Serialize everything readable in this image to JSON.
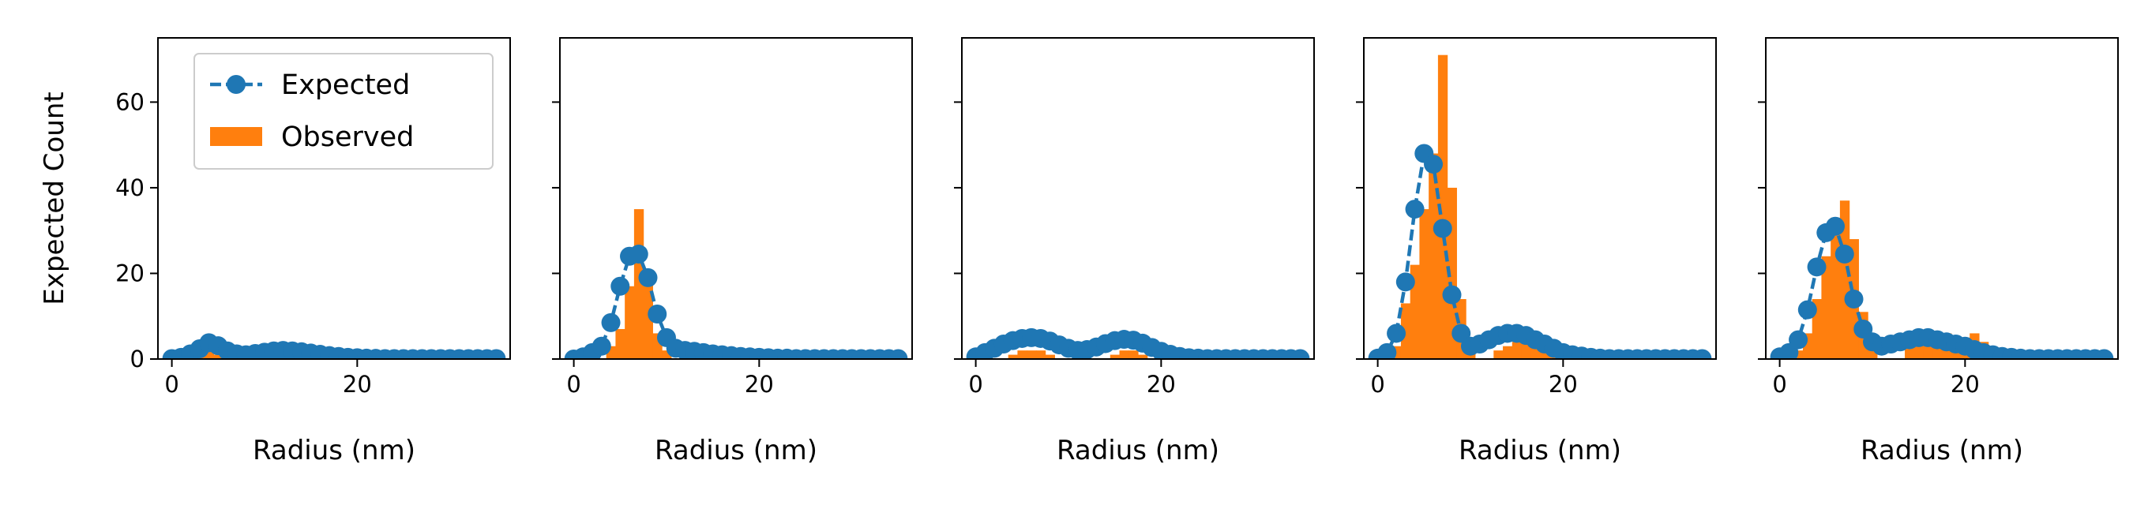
{
  "chart_data": [
    {
      "type": "bar+line",
      "xlabel": "Radius (nm)",
      "ylabel": "Expected Count",
      "xlim": [
        -1.5,
        36.5
      ],
      "ylim": [
        0,
        75
      ],
      "xticks": [
        0,
        20
      ],
      "yticks": [
        0,
        20,
        40,
        60
      ],
      "legend": {
        "placement": "top-left",
        "entries": [
          "Expected",
          "Observed"
        ]
      },
      "series": [
        {
          "name": "Expected",
          "kind": "line-markers",
          "style": "dashed",
          "color": "#1f77b4",
          "x": [
            0,
            1,
            2,
            3,
            4,
            5,
            6,
            7,
            8,
            9,
            10,
            11,
            12,
            13,
            14,
            15,
            16,
            17,
            18,
            19,
            20,
            21,
            22,
            23,
            24,
            25,
            26,
            27,
            28,
            29,
            30,
            31,
            32,
            33,
            34,
            35
          ],
          "y": [
            0.1,
            0.4,
            1.2,
            2.4,
            3.8,
            3.1,
            1.9,
            1.2,
            1.0,
            1.3,
            1.6,
            1.9,
            2.0,
            1.9,
            1.7,
            1.4,
            1.1,
            0.8,
            0.6,
            0.4,
            0.3,
            0.2,
            0.15,
            0.1,
            0.1,
            0.1,
            0.1,
            0.1,
            0.1,
            0.1,
            0.1,
            0.1,
            0.1,
            0.1,
            0.1,
            0.1
          ]
        },
        {
          "name": "Observed",
          "kind": "histogram",
          "color": "#ff7f0e",
          "x": [
            3,
            4,
            5
          ],
          "y": [
            1,
            3,
            1
          ]
        }
      ]
    },
    {
      "type": "bar+line",
      "xlabel": "Radius (nm)",
      "xlim": [
        -1.5,
        36.5
      ],
      "ylim": [
        0,
        75
      ],
      "xticks": [
        0,
        20
      ],
      "series": [
        {
          "name": "Expected",
          "kind": "line-markers",
          "style": "dashed",
          "color": "#1f77b4",
          "x": [
            0,
            1,
            2,
            3,
            4,
            5,
            6,
            7,
            8,
            9,
            10,
            11,
            12,
            13,
            14,
            15,
            16,
            17,
            18,
            19,
            20,
            21,
            22,
            23,
            24,
            25,
            26,
            27,
            28,
            29,
            30,
            31,
            32,
            33,
            34,
            35
          ],
          "y": [
            0,
            0.5,
            1.5,
            3,
            8.5,
            17,
            24,
            24.5,
            19,
            10.5,
            5,
            2.5,
            2,
            1.8,
            1.5,
            1.2,
            1,
            0.8,
            0.6,
            0.5,
            0.4,
            0.3,
            0.2,
            0.2,
            0.1,
            0.1,
            0.1,
            0.1,
            0.1,
            0.1,
            0.1,
            0.1,
            0.1,
            0.1,
            0.1,
            0.1
          ]
        },
        {
          "name": "Observed",
          "kind": "histogram",
          "color": "#ff7f0e",
          "x": [
            4,
            5,
            6,
            7,
            8,
            9,
            10
          ],
          "y": [
            3,
            7,
            17,
            35,
            18,
            6,
            2
          ]
        }
      ]
    },
    {
      "type": "bar+line",
      "xlabel": "Radius (nm)",
      "xlim": [
        -1.5,
        36.5
      ],
      "ylim": [
        0,
        75
      ],
      "xticks": [
        0,
        20
      ],
      "series": [
        {
          "name": "Expected",
          "kind": "line-markers",
          "style": "dashed",
          "color": "#1f77b4",
          "x": [
            0,
            1,
            2,
            3,
            4,
            5,
            6,
            7,
            8,
            9,
            10,
            11,
            12,
            13,
            14,
            15,
            16,
            17,
            18,
            19,
            20,
            21,
            22,
            23,
            24,
            25,
            26,
            27,
            28,
            29,
            30,
            31,
            32,
            33,
            34,
            35
          ],
          "y": [
            0.5,
            1.5,
            2.5,
            3.5,
            4.3,
            4.8,
            5,
            4.8,
            4.2,
            3.3,
            2.5,
            2,
            2.2,
            2.8,
            3.6,
            4.3,
            4.6,
            4.4,
            3.7,
            2.7,
            1.8,
            1.1,
            0.6,
            0.3,
            0.2,
            0.1,
            0.1,
            0.1,
            0.1,
            0.1,
            0.1,
            0.1,
            0.1,
            0.1,
            0.1,
            0.1
          ]
        },
        {
          "name": "Observed",
          "kind": "histogram",
          "color": "#ff7f0e",
          "x": [
            4,
            5,
            6,
            7,
            8,
            15,
            16,
            17,
            18
          ],
          "y": [
            1,
            2,
            2,
            2,
            1,
            1,
            2,
            2,
            1
          ]
        }
      ]
    },
    {
      "type": "bar+line",
      "xlabel": "Radius (nm)",
      "xlim": [
        -1.5,
        36.5
      ],
      "ylim": [
        0,
        75
      ],
      "xticks": [
        0,
        20
      ],
      "series": [
        {
          "name": "Expected",
          "kind": "line-markers",
          "style": "dashed",
          "color": "#1f77b4",
          "x": [
            0,
            1,
            2,
            3,
            4,
            5,
            6,
            7,
            8,
            9,
            10,
            11,
            12,
            13,
            14,
            15,
            16,
            17,
            18,
            19,
            20,
            21,
            22,
            23,
            24,
            25,
            26,
            27,
            28,
            29,
            30,
            31,
            32,
            33,
            34,
            35
          ],
          "y": [
            0.2,
            1.5,
            6,
            18,
            35,
            48,
            45.5,
            30.5,
            15,
            6,
            3,
            3.5,
            4.5,
            5.5,
            6,
            6,
            5.5,
            4.5,
            3.5,
            2.5,
            1.5,
            1,
            0.7,
            0.4,
            0.2,
            0.1,
            0.1,
            0.1,
            0.1,
            0.1,
            0.1,
            0.1,
            0.1,
            0.1,
            0.1,
            0.1
          ]
        },
        {
          "name": "Observed",
          "kind": "histogram",
          "color": "#ff7f0e",
          "x": [
            1,
            2,
            3,
            4,
            5,
            6,
            7,
            8,
            9,
            10,
            13,
            14,
            15,
            16,
            17,
            18,
            19
          ],
          "y": [
            1,
            3,
            13,
            22,
            35,
            48,
            71,
            40,
            14,
            3,
            2,
            3,
            4,
            5,
            5,
            4,
            2
          ]
        }
      ]
    },
    {
      "type": "bar+line",
      "xlabel": "Radius (nm)",
      "xlim": [
        -1.5,
        36.5
      ],
      "ylim": [
        0,
        75
      ],
      "xticks": [
        0,
        20
      ],
      "series": [
        {
          "name": "Expected",
          "kind": "line-markers",
          "style": "dashed",
          "color": "#1f77b4",
          "x": [
            0,
            1,
            2,
            3,
            4,
            5,
            6,
            7,
            8,
            9,
            10,
            11,
            12,
            13,
            14,
            15,
            16,
            17,
            18,
            19,
            20,
            21,
            22,
            23,
            24,
            25,
            26,
            27,
            28,
            29,
            30,
            31,
            32,
            33,
            34,
            35
          ],
          "y": [
            0.5,
            1.5,
            4.5,
            11.5,
            21.5,
            29.5,
            31,
            24.5,
            14,
            7,
            4,
            3,
            3.5,
            4,
            4.5,
            5,
            5,
            4.5,
            4,
            3.5,
            3,
            2.2,
            1.5,
            1,
            0.6,
            0.4,
            0.2,
            0.1,
            0.1,
            0.1,
            0.1,
            0.1,
            0.1,
            0.1,
            0.1,
            0.1
          ]
        },
        {
          "name": "Observed",
          "kind": "histogram",
          "color": "#ff7f0e",
          "x": [
            2,
            3,
            4,
            5,
            6,
            7,
            8,
            9,
            10,
            14,
            15,
            16,
            17,
            18,
            19,
            20,
            21,
            22
          ],
          "y": [
            2,
            6,
            14,
            24,
            33,
            37,
            28,
            11,
            4,
            3,
            4,
            5,
            6,
            6,
            5,
            5,
            6,
            4
          ]
        }
      ]
    }
  ]
}
